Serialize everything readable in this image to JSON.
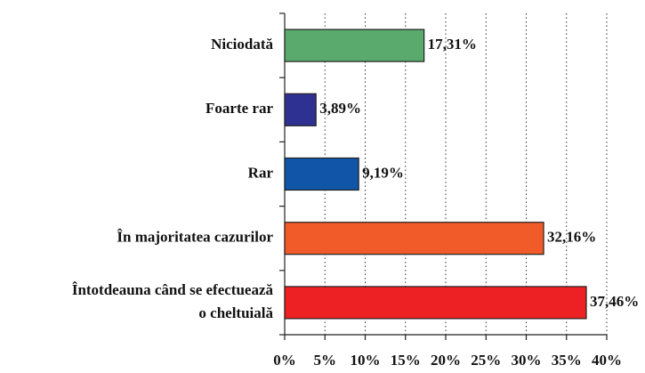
{
  "chart_data": {
    "type": "barh",
    "categories": [
      "Niciodată",
      "Foarte rar",
      "Rar",
      "În majoritatea cazurilor",
      "Întotdeauna când se efectuează\no cheltuială"
    ],
    "values": [
      17.31,
      3.89,
      9.19,
      32.16,
      37.46
    ],
    "value_labels": [
      "17,31%",
      "3,89%",
      "9,19%",
      "32,16%",
      "37,46%"
    ],
    "colors": [
      "#5aaa6e",
      "#2e3192",
      "#1055a8",
      "#f15a29",
      "#ed2024"
    ],
    "xlim": [
      0,
      40
    ],
    "xticks": [
      {
        "value": 0,
        "label": "0%"
      },
      {
        "value": 5,
        "label": "5%"
      },
      {
        "value": 10,
        "label": "10%"
      },
      {
        "value": 15,
        "label": "15%"
      },
      {
        "value": 20,
        "label": "20%"
      },
      {
        "value": 25,
        "label": "25%"
      },
      {
        "value": 30,
        "label": "30%"
      },
      {
        "value": 35,
        "label": "35%"
      },
      {
        "value": 40,
        "label": "40%"
      }
    ],
    "grid": true
  }
}
